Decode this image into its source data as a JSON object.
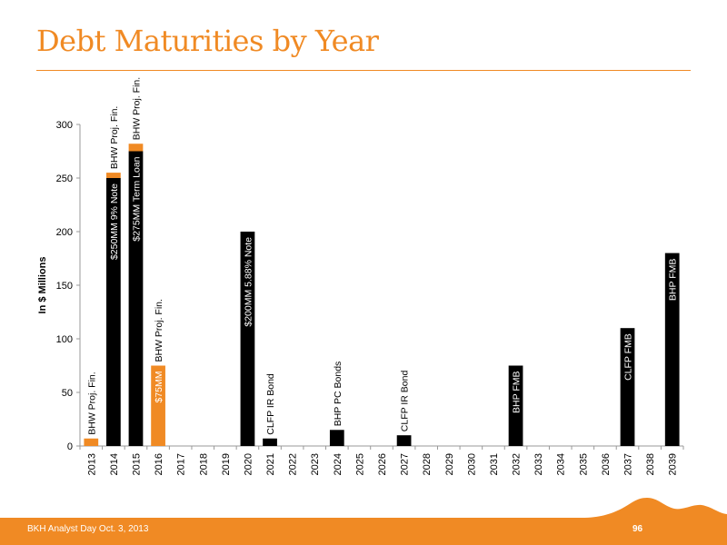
{
  "title": "Debt Maturities by Year",
  "footer": {
    "text": "BKH Analyst Day  Oct. 3, 2013",
    "page_number": "96"
  },
  "colors": {
    "accent": "#F08A24",
    "bar_black": "#000000",
    "bar_orange": "#F08A24"
  },
  "chart_data": {
    "type": "bar",
    "stacked": true,
    "ylabel": "In $ Millions",
    "xlabel": "",
    "ylim": [
      0,
      300
    ],
    "yticks": [
      0,
      50,
      100,
      150,
      200,
      250,
      300
    ],
    "grid": false,
    "categories": [
      "2013",
      "2014",
      "2015",
      "2016",
      "2017",
      "2018",
      "2019",
      "2020",
      "2021",
      "2022",
      "2023",
      "2024",
      "2025",
      "2026",
      "2027",
      "2028",
      "2029",
      "2030",
      "2031",
      "2032",
      "2033",
      "2034",
      "2035",
      "2036",
      "2037",
      "2038",
      "2039"
    ],
    "series": [
      {
        "color": "#000000",
        "values": [
          0,
          250,
          275,
          0,
          0,
          0,
          0,
          200,
          7,
          0,
          0,
          15,
          0,
          0,
          10,
          0,
          0,
          0,
          0,
          75,
          0,
          0,
          0,
          0,
          110,
          0,
          180
        ]
      },
      {
        "color": "#F08A24",
        "values": [
          7,
          5,
          7,
          75,
          0,
          0,
          0,
          0,
          0,
          0,
          0,
          0,
          0,
          0,
          0,
          0,
          0,
          0,
          0,
          0,
          0,
          0,
          0,
          0,
          0,
          0,
          0
        ]
      }
    ],
    "annotations": [
      {
        "category": "2013",
        "text": "BHW Proj. Fin.",
        "position": "above"
      },
      {
        "category": "2014",
        "text": "BHW Proj. Fin.",
        "position": "above"
      },
      {
        "category": "2014",
        "text": "$250MM 9% Note",
        "position": "inside"
      },
      {
        "category": "2015",
        "text": "BHW Proj. Fin.",
        "position": "above"
      },
      {
        "category": "2015",
        "text": "$275MM Term Loan",
        "position": "inside"
      },
      {
        "category": "2016",
        "text": "BHW Proj. Fin.",
        "position": "above"
      },
      {
        "category": "2016",
        "text": "$75MM",
        "position": "inside"
      },
      {
        "category": "2020",
        "text": "$200MM 5.88% Note",
        "position": "inside"
      },
      {
        "category": "2021",
        "text": "CLFP IR Bond",
        "position": "above"
      },
      {
        "category": "2024",
        "text": "BHP PC Bonds",
        "position": "above"
      },
      {
        "category": "2027",
        "text": "CLFP IR Bond",
        "position": "above"
      },
      {
        "category": "2032",
        "text": "BHP FMB",
        "position": "inside"
      },
      {
        "category": "2037",
        "text": "CLFP FMB",
        "position": "inside"
      },
      {
        "category": "2039",
        "text": "BHP FMB",
        "position": "inside"
      }
    ]
  }
}
